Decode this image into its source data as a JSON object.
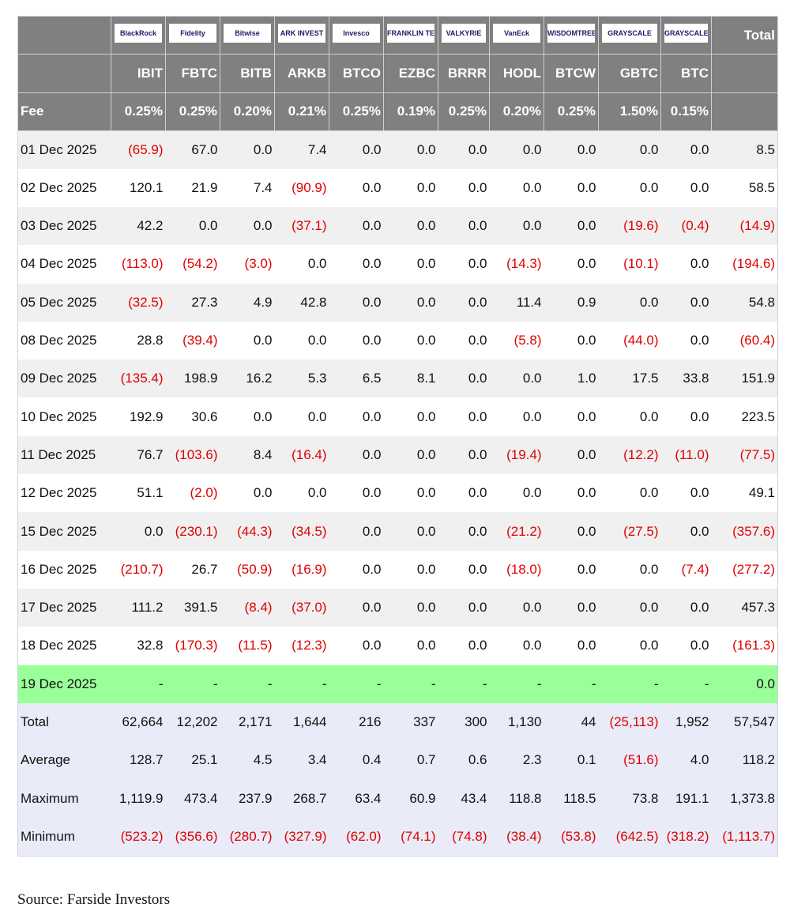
{
  "header": {
    "logos": [
      "BlackRock",
      "Fidelity",
      "Bitwise",
      "ARK INVEST",
      "Invesco",
      "FRANKLIN TEMPLETON",
      "VALKYRIE",
      "VanEck",
      "WISDOMTREE",
      "GRAYSCALE",
      "GRAYSCALE"
    ],
    "total_label": "Total",
    "tickers": [
      "IBIT",
      "FBTC",
      "BITB",
      "ARKB",
      "BTCO",
      "EZBC",
      "BRRR",
      "HODL",
      "BTCW",
      "GBTC",
      "BTC"
    ],
    "fee_label": "Fee",
    "fees": [
      "0.25%",
      "0.25%",
      "0.20%",
      "0.21%",
      "0.25%",
      "0.19%",
      "0.25%",
      "0.20%",
      "0.25%",
      "1.50%",
      "0.15%"
    ]
  },
  "rows": [
    {
      "date": "01 Dec 2025",
      "cells": [
        "(65.9)",
        "67.0",
        "0.0",
        "7.4",
        "0.0",
        "0.0",
        "0.0",
        "0.0",
        "0.0",
        "0.0",
        "0.0",
        "8.5"
      ]
    },
    {
      "date": "02 Dec 2025",
      "cells": [
        "120.1",
        "21.9",
        "7.4",
        "(90.9)",
        "0.0",
        "0.0",
        "0.0",
        "0.0",
        "0.0",
        "0.0",
        "0.0",
        "58.5"
      ]
    },
    {
      "date": "03 Dec 2025",
      "cells": [
        "42.2",
        "0.0",
        "0.0",
        "(37.1)",
        "0.0",
        "0.0",
        "0.0",
        "0.0",
        "0.0",
        "(19.6)",
        "(0.4)",
        "(14.9)"
      ]
    },
    {
      "date": "04 Dec 2025",
      "cells": [
        "(113.0)",
        "(54.2)",
        "(3.0)",
        "0.0",
        "0.0",
        "0.0",
        "0.0",
        "(14.3)",
        "0.0",
        "(10.1)",
        "0.0",
        "(194.6)"
      ]
    },
    {
      "date": "05 Dec 2025",
      "cells": [
        "(32.5)",
        "27.3",
        "4.9",
        "42.8",
        "0.0",
        "0.0",
        "0.0",
        "11.4",
        "0.9",
        "0.0",
        "0.0",
        "54.8"
      ]
    },
    {
      "date": "08 Dec 2025",
      "cells": [
        "28.8",
        "(39.4)",
        "0.0",
        "0.0",
        "0.0",
        "0.0",
        "0.0",
        "(5.8)",
        "0.0",
        "(44.0)",
        "0.0",
        "(60.4)"
      ]
    },
    {
      "date": "09 Dec 2025",
      "cells": [
        "(135.4)",
        "198.9",
        "16.2",
        "5.3",
        "6.5",
        "8.1",
        "0.0",
        "0.0",
        "1.0",
        "17.5",
        "33.8",
        "151.9"
      ]
    },
    {
      "date": "10 Dec 2025",
      "cells": [
        "192.9",
        "30.6",
        "0.0",
        "0.0",
        "0.0",
        "0.0",
        "0.0",
        "0.0",
        "0.0",
        "0.0",
        "0.0",
        "223.5"
      ]
    },
    {
      "date": "11 Dec 2025",
      "cells": [
        "76.7",
        "(103.6)",
        "8.4",
        "(16.4)",
        "0.0",
        "0.0",
        "0.0",
        "(19.4)",
        "0.0",
        "(12.2)",
        "(11.0)",
        "(77.5)"
      ]
    },
    {
      "date": "12 Dec 2025",
      "cells": [
        "51.1",
        "(2.0)",
        "0.0",
        "0.0",
        "0.0",
        "0.0",
        "0.0",
        "0.0",
        "0.0",
        "0.0",
        "0.0",
        "49.1"
      ]
    },
    {
      "date": "15 Dec 2025",
      "cells": [
        "0.0",
        "(230.1)",
        "(44.3)",
        "(34.5)",
        "0.0",
        "0.0",
        "0.0",
        "(21.2)",
        "0.0",
        "(27.5)",
        "0.0",
        "(357.6)"
      ]
    },
    {
      "date": "16 Dec 2025",
      "cells": [
        "(210.7)",
        "26.7",
        "(50.9)",
        "(16.9)",
        "0.0",
        "0.0",
        "0.0",
        "(18.0)",
        "0.0",
        "0.0",
        "(7.4)",
        "(277.2)"
      ]
    },
    {
      "date": "17 Dec 2025",
      "cells": [
        "111.2",
        "391.5",
        "(8.4)",
        "(37.0)",
        "0.0",
        "0.0",
        "0.0",
        "0.0",
        "0.0",
        "0.0",
        "0.0",
        "457.3"
      ]
    },
    {
      "date": "18 Dec 2025",
      "cells": [
        "32.8",
        "(170.3)",
        "(11.5)",
        "(12.3)",
        "0.0",
        "0.0",
        "0.0",
        "0.0",
        "0.0",
        "0.0",
        "0.0",
        "(161.3)"
      ]
    },
    {
      "date": "19 Dec 2025",
      "cells": [
        "-",
        "-",
        "-",
        "-",
        "-",
        "-",
        "-",
        "-",
        "-",
        "-",
        "-",
        "0.0"
      ]
    }
  ],
  "summary": [
    {
      "label": "Total",
      "cells": [
        "62,664",
        "12,202",
        "2,171",
        "1,644",
        "216",
        "337",
        "300",
        "1,130",
        "44",
        "(25,113)",
        "1,952",
        "57,547"
      ]
    },
    {
      "label": "Average",
      "cells": [
        "128.7",
        "25.1",
        "4.5",
        "3.4",
        "0.4",
        "0.7",
        "0.6",
        "2.3",
        "0.1",
        "(51.6)",
        "4.0",
        "118.2"
      ]
    },
    {
      "label": "Maximum",
      "cells": [
        "1,119.9",
        "473.4",
        "237.9",
        "268.7",
        "63.4",
        "60.9",
        "43.4",
        "118.8",
        "118.5",
        "73.8",
        "191.1",
        "1,373.8"
      ]
    },
    {
      "label": "Minimum",
      "cells": [
        "(523.2)",
        "(356.6)",
        "(280.7)",
        "(327.9)",
        "(62.0)",
        "(74.1)",
        "(74.8)",
        "(38.4)",
        "(53.8)",
        "(642.5)",
        "(318.2)",
        "(1,113.7)"
      ]
    }
  ],
  "source": "Source: Farside Investors"
}
